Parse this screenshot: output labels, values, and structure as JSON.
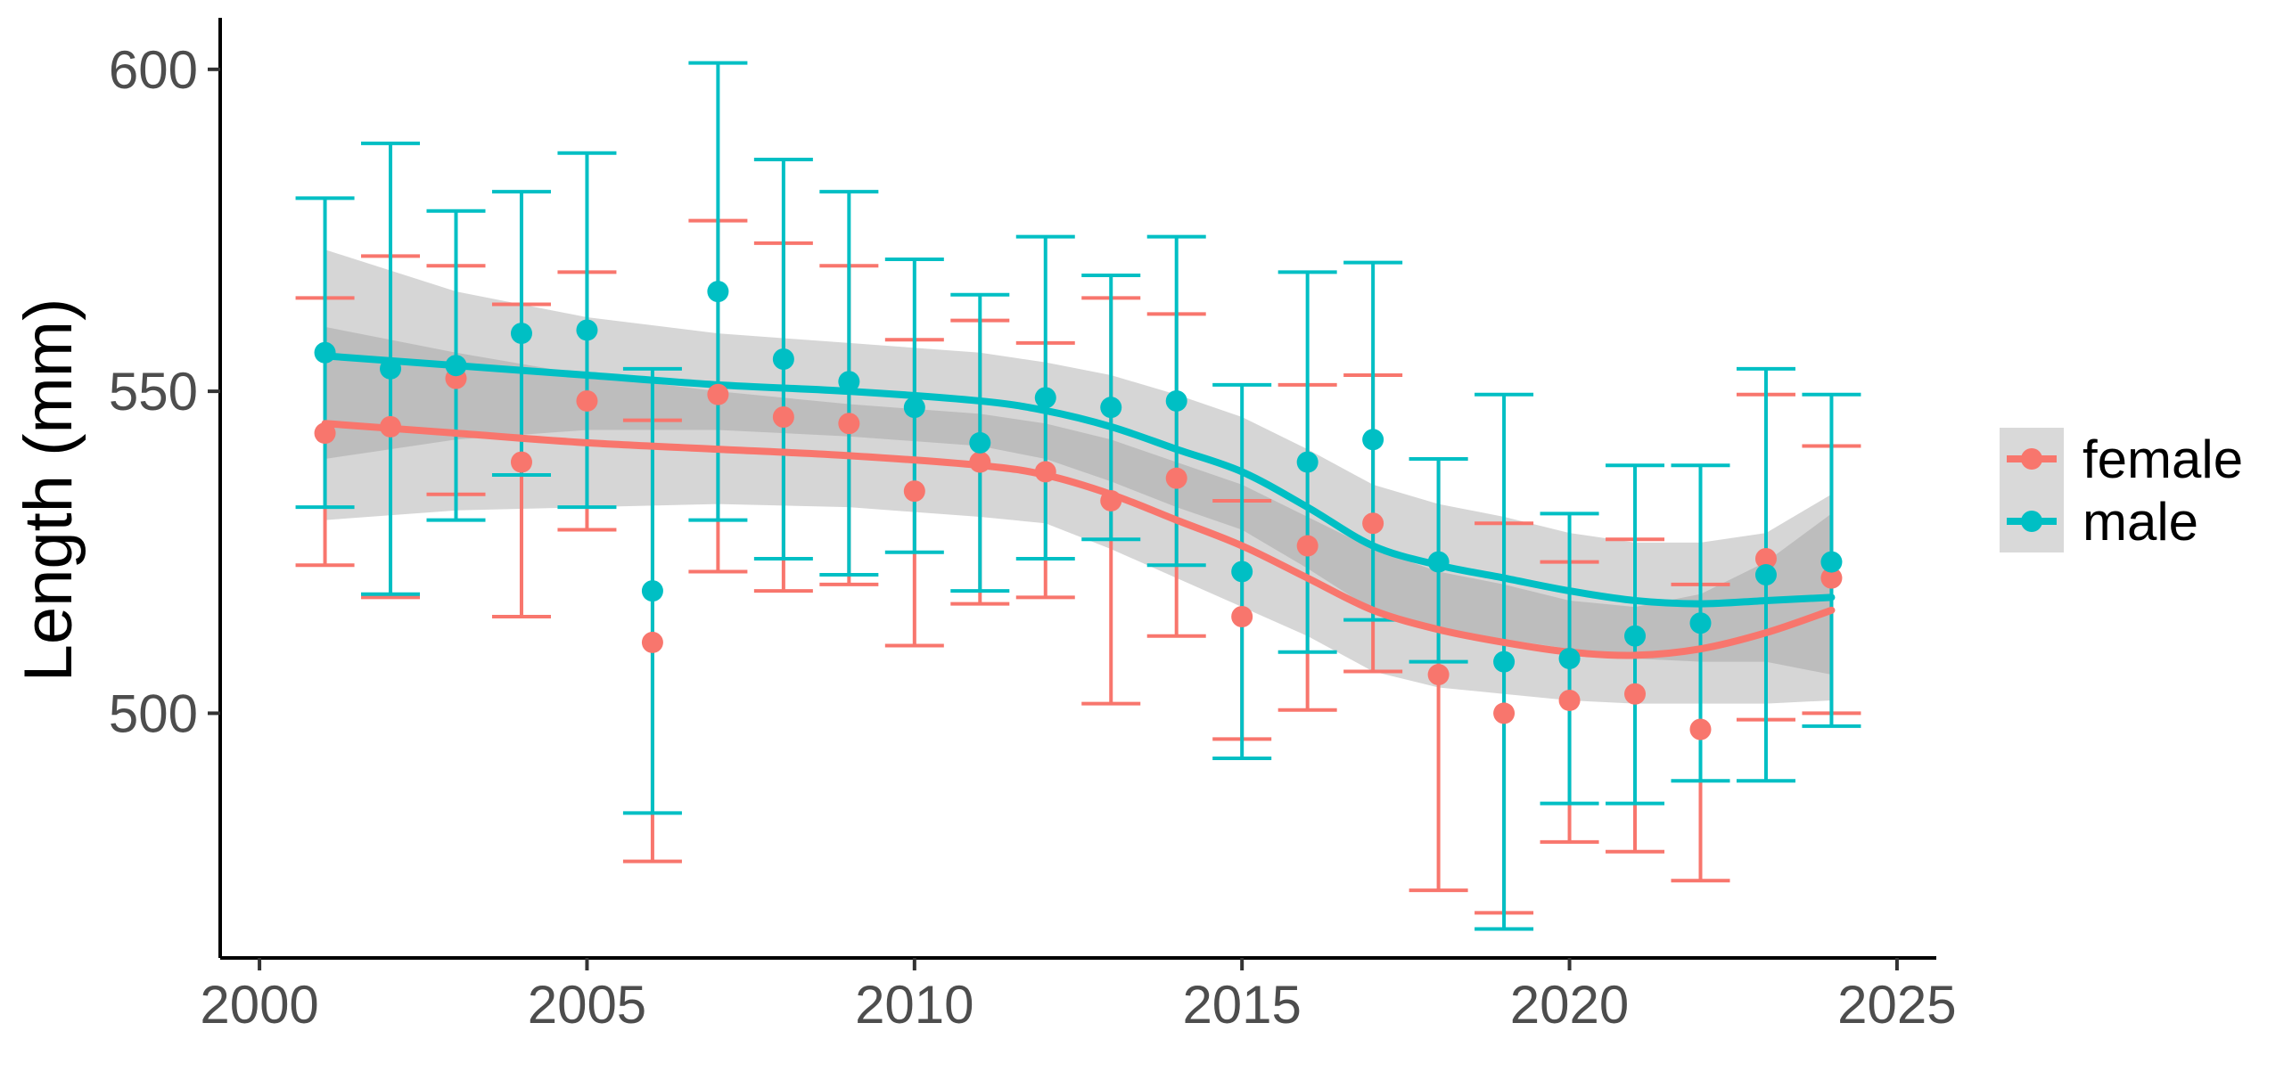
{
  "colors": {
    "female": "#F8766D",
    "male": "#00BFC4",
    "ribbon": "#999999",
    "axis": "#000000"
  },
  "chart_data": {
    "type": "scatter",
    "title": "",
    "xlabel": "",
    "ylabel": "Length (mm)",
    "xlim": [
      1999.4,
      2025.6
    ],
    "ylim": [
      462,
      608
    ],
    "x_ticks": [
      2000,
      2005,
      2010,
      2015,
      2020,
      2025
    ],
    "x_tick_labels": [
      "2000",
      "2005",
      "2010",
      "2015",
      "2020",
      "2025"
    ],
    "y_ticks": [
      500,
      550,
      600
    ],
    "y_tick_labels": [
      "500",
      "550",
      "600"
    ],
    "grid": false,
    "legend_position": "right",
    "legend_labels": [
      "female",
      "male"
    ],
    "series": [
      {
        "name": "female",
        "color": "#F8766D",
        "x": [
          2001,
          2002,
          2003,
          2004,
          2005,
          2006,
          2007,
          2008,
          2009,
          2010,
          2011,
          2012,
          2013,
          2014,
          2015,
          2016,
          2017,
          2018,
          2019,
          2020,
          2021,
          2022,
          2023,
          2024
        ],
        "y": [
          543.5,
          544.5,
          552,
          539,
          548.5,
          511,
          549.5,
          546,
          545,
          534.5,
          539,
          537.5,
          533,
          536.5,
          515,
          526,
          529.5,
          506,
          500,
          502,
          503,
          497.5,
          524,
          521
        ],
        "ymin": [
          523,
          518,
          534,
          515,
          528.5,
          477,
          522,
          519,
          520,
          510.5,
          517,
          518,
          501.5,
          512,
          496,
          500.5,
          506.5,
          472.5,
          469,
          480,
          478.5,
          474,
          499,
          500
        ],
        "ymax": [
          564.5,
          571,
          569.5,
          563.5,
          568.5,
          545.5,
          576.5,
          573,
          569.5,
          558,
          561,
          557.5,
          564.5,
          562,
          533,
          551,
          552.5,
          539.5,
          529.5,
          523.5,
          527,
          520,
          549.5,
          541.5
        ],
        "smooth_x": [
          2001,
          2003,
          2005,
          2007,
          2009,
          2011,
          2012,
          2013,
          2014,
          2015,
          2016,
          2017,
          2018,
          2019,
          2020,
          2021,
          2022,
          2023,
          2024
        ],
        "smooth_y": [
          545,
          543.5,
          542,
          541,
          540,
          538.5,
          537,
          534,
          530,
          526,
          521,
          516,
          513,
          511,
          509.5,
          509,
          510,
          512.5,
          516
        ],
        "smooth_lo": [
          530,
          531.5,
          532,
          532.5,
          532,
          530.5,
          529.5,
          525.5,
          521,
          516.5,
          512,
          506.5,
          504,
          503,
          502,
          501.5,
          501.5,
          501.5,
          502
        ],
        "smooth_hi": [
          560,
          556,
          552.5,
          550,
          548,
          546.5,
          545,
          542.5,
          539,
          535.5,
          530.5,
          525.5,
          522,
          520,
          517.5,
          516.5,
          518.5,
          523.5,
          531
        ]
      },
      {
        "name": "male",
        "color": "#00BFC4",
        "x": [
          2001,
          2002,
          2003,
          2004,
          2005,
          2006,
          2007,
          2008,
          2009,
          2010,
          2011,
          2012,
          2013,
          2014,
          2015,
          2016,
          2017,
          2018,
          2019,
          2020,
          2021,
          2022,
          2023,
          2024
        ],
        "y": [
          556,
          553.5,
          554,
          559,
          559.5,
          519,
          565.5,
          555,
          551.5,
          547.5,
          542,
          549,
          547.5,
          548.5,
          522,
          539,
          542.5,
          523.5,
          508,
          508.5,
          512,
          514,
          521.5,
          523.5
        ],
        "ymin": [
          532,
          518.5,
          530,
          537,
          532,
          484.5,
          530,
          524,
          521.5,
          525,
          519,
          524,
          527,
          523,
          493,
          509.5,
          514.5,
          508,
          466.5,
          486,
          486,
          489.5,
          489.5,
          498
        ],
        "ymax": [
          580,
          588.5,
          578,
          581,
          587,
          553.5,
          601,
          586,
          581,
          570.5,
          565,
          574,
          568,
          574,
          551,
          568.5,
          570,
          539.5,
          549.5,
          531,
          538.5,
          538.5,
          553.5,
          549.5
        ],
        "smooth_x": [
          2001,
          2003,
          2005,
          2007,
          2009,
          2011,
          2012,
          2013,
          2014,
          2015,
          2016,
          2017,
          2018,
          2019,
          2020,
          2021,
          2022,
          2023,
          2024
        ],
        "smooth_y": [
          555.5,
          554,
          552.5,
          551,
          550,
          548.5,
          547,
          544.5,
          541,
          537.5,
          532,
          526,
          523,
          521,
          519,
          517.5,
          517,
          517.5,
          518
        ],
        "smooth_lo": [
          539.5,
          542.5,
          544,
          544,
          543,
          541.5,
          539.5,
          536,
          532,
          528.5,
          522.5,
          516,
          513,
          511.5,
          510,
          508.5,
          508,
          508,
          506
        ],
        "smooth_hi": [
          572,
          565.5,
          561.5,
          559,
          557.5,
          556,
          554.5,
          552.5,
          549.5,
          546,
          541,
          535.5,
          532.5,
          530.5,
          528,
          526.5,
          526.5,
          528,
          534
        ]
      }
    ]
  }
}
